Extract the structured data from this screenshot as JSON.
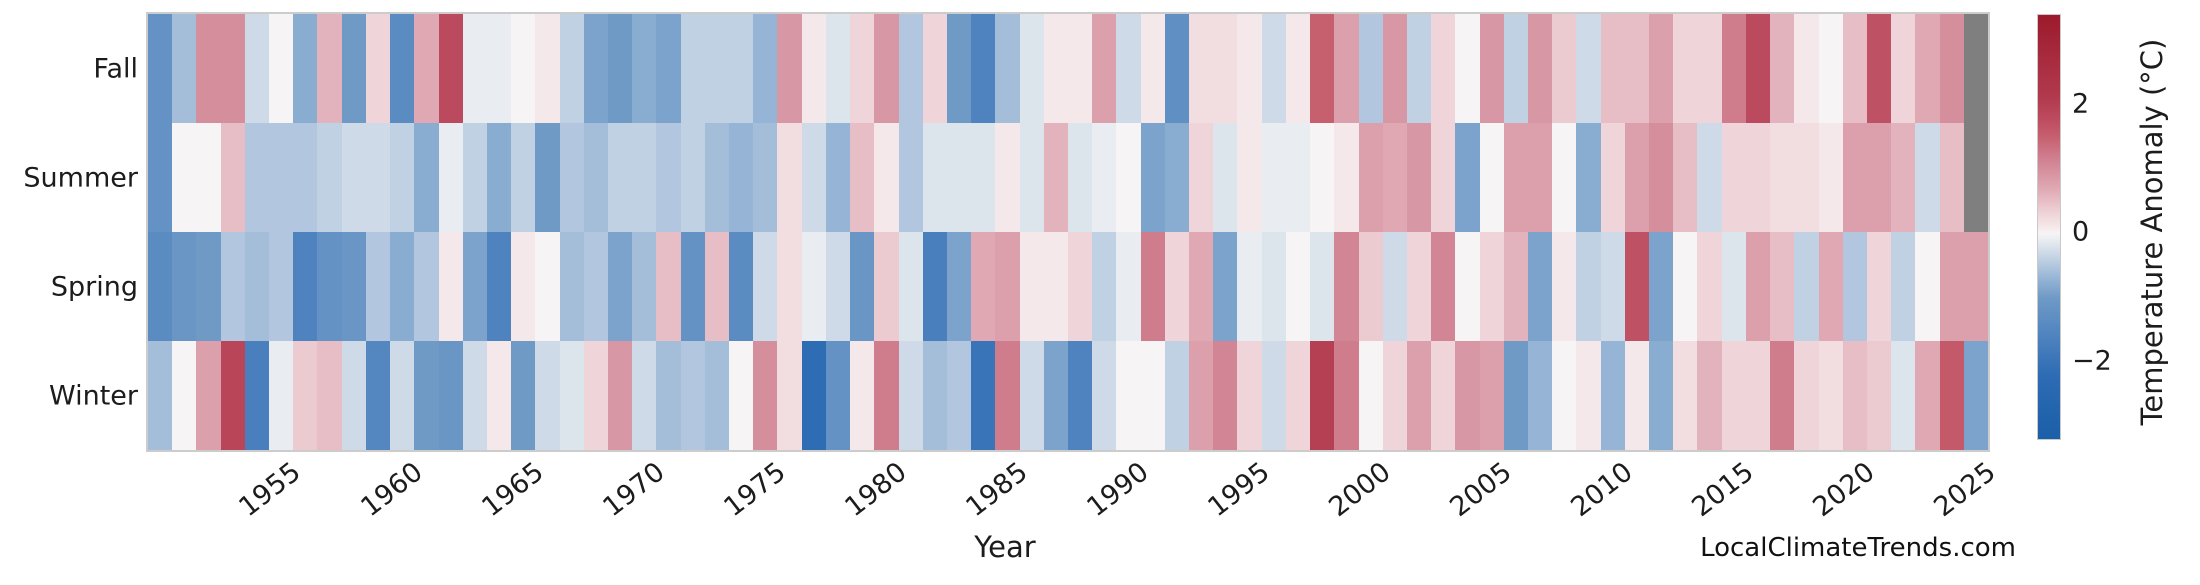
{
  "watermark": "LocalClimateTrends.com",
  "chart_data": {
    "type": "heatmap",
    "title": "",
    "xlabel": "Year",
    "ylabel": "",
    "colorbar_label": "Temperature Anomaly (°C)",
    "rows": [
      "Fall",
      "Summer",
      "Spring",
      "Winter"
    ],
    "x_start_year": 1950,
    "x_end_year": 2025,
    "x_tick_years": [
      1955,
      1960,
      1965,
      1970,
      1975,
      1980,
      1985,
      1990,
      1995,
      2000,
      2005,
      2010,
      2015,
      2020,
      2025
    ],
    "colorbar_ticks": [
      {
        "label": "2",
        "value": 2
      },
      {
        "label": "0",
        "value": 0
      },
      {
        "label": "−2",
        "value": -2
      }
    ],
    "vmin": -3.2,
    "vmax": 3.4,
    "nan_color": "#7f7f7f",
    "diverging_stops": [
      [
        -3.3,
        "#1a5fa8"
      ],
      [
        -2.2,
        "#2e6cb4"
      ],
      [
        -1.6,
        "#4f83bf"
      ],
      [
        -1.0,
        "#6f9ac6"
      ],
      [
        -0.7,
        "#96b5d6"
      ],
      [
        -0.45,
        "#b9cce1"
      ],
      [
        -0.25,
        "#d5dfe9"
      ],
      [
        -0.1,
        "#e9edf2"
      ],
      [
        0.0,
        "#f6f4f5"
      ],
      [
        0.12,
        "#f5e6e8"
      ],
      [
        0.3,
        "#efd5d9"
      ],
      [
        0.5,
        "#e7bec6"
      ],
      [
        0.7,
        "#dfa8b3"
      ],
      [
        0.9,
        "#d897a4"
      ],
      [
        1.2,
        "#cf7c8d"
      ],
      [
        1.5,
        "#c6606f"
      ],
      [
        1.8,
        "#bc4a5e"
      ],
      [
        2.1,
        "#b23a4e"
      ],
      [
        3.4,
        "#9c1a2c"
      ]
    ],
    "grid": false,
    "legend_position": "right-colorbar",
    "series": [
      {
        "name": "Fall",
        "values": [
          -1.2,
          -0.6,
          1.0,
          1.0,
          -0.3,
          0.0,
          -0.8,
          0.6,
          -1.0,
          0.3,
          -1.4,
          0.7,
          1.8,
          -0.1,
          -0.1,
          0.0,
          0.1,
          -0.4,
          -0.9,
          -1.0,
          -0.8,
          -0.9,
          -0.4,
          -0.4,
          -0.4,
          -0.7,
          0.9,
          0.1,
          -0.2,
          0.3,
          0.9,
          -0.5,
          0.3,
          -1.0,
          -1.6,
          -0.6,
          -0.2,
          0.1,
          0.1,
          0.8,
          -0.3,
          0.1,
          -1.3,
          0.2,
          0.2,
          0.1,
          -0.3,
          0.1,
          1.5,
          0.8,
          -0.5,
          0.9,
          -0.4,
          0.3,
          0.0,
          0.9,
          -0.4,
          0.9,
          0.4,
          -0.3,
          0.5,
          0.5,
          0.8,
          0.3,
          0.3,
          1.2,
          1.8,
          0.6,
          0.1,
          0.0,
          0.5,
          1.7,
          0.3,
          0.7,
          1.0,
          null
        ]
      },
      {
        "name": "Summer",
        "values": [
          -1.2,
          0.0,
          0.0,
          0.5,
          -0.5,
          -0.5,
          -0.5,
          -0.4,
          -0.3,
          -0.3,
          -0.4,
          -0.8,
          -0.1,
          -0.4,
          -0.8,
          -0.4,
          -1.0,
          -0.5,
          -0.6,
          -0.4,
          -0.4,
          -0.5,
          -0.4,
          -0.6,
          -0.7,
          -0.6,
          0.2,
          -0.3,
          -0.7,
          0.5,
          0.1,
          -0.5,
          -0.2,
          -0.2,
          -0.2,
          0.1,
          -0.2,
          0.6,
          -0.2,
          -0.1,
          0.0,
          -0.9,
          -0.8,
          0.3,
          -0.2,
          0.1,
          -0.1,
          -0.1,
          0.0,
          0.1,
          0.8,
          0.7,
          0.9,
          0.3,
          -0.9,
          0.0,
          0.8,
          0.8,
          0.0,
          -0.8,
          0.3,
          0.8,
          1.0,
          0.5,
          -0.3,
          0.3,
          0.3,
          0.2,
          0.2,
          0.1,
          0.8,
          0.8,
          0.6,
          -0.3,
          0.5,
          null
        ]
      },
      {
        "name": "Spring",
        "values": [
          -1.4,
          -1.1,
          -1.0,
          -0.5,
          -0.6,
          -0.5,
          -1.6,
          -1.2,
          -1.1,
          -0.5,
          -0.8,
          -0.5,
          0.1,
          -0.9,
          -1.6,
          0.1,
          0.0,
          -0.6,
          -0.5,
          -0.9,
          -0.6,
          0.5,
          -1.2,
          0.5,
          -1.4,
          -0.3,
          0.2,
          -0.1,
          -0.3,
          -1.1,
          0.4,
          -0.2,
          -1.7,
          -0.9,
          0.7,
          0.8,
          0.1,
          0.1,
          0.3,
          -0.4,
          -0.1,
          1.2,
          0.3,
          0.7,
          -0.9,
          -0.1,
          -0.2,
          0.0,
          -0.2,
          1.1,
          0.4,
          -0.3,
          0.3,
          1.1,
          0.0,
          0.3,
          0.6,
          -0.9,
          0.1,
          -0.4,
          -0.3,
          1.7,
          -0.9,
          0.0,
          0.3,
          -0.2,
          0.8,
          0.5,
          -0.4,
          0.7,
          -0.5,
          0.3,
          -0.4,
          0.0,
          0.8,
          0.8
        ]
      },
      {
        "name": "Winter",
        "values": [
          -0.6,
          0.0,
          0.8,
          1.9,
          -1.7,
          -0.1,
          0.4,
          0.5,
          -0.3,
          -1.5,
          -0.3,
          -1.0,
          -1.1,
          -0.3,
          0.1,
          -1.0,
          -0.3,
          -0.2,
          0.3,
          0.9,
          -0.3,
          -0.6,
          -0.5,
          -0.6,
          0.0,
          1.0,
          0.2,
          -2.2,
          -1.2,
          0.1,
          1.2,
          -0.3,
          -0.6,
          -0.5,
          -2.0,
          1.2,
          -0.3,
          -0.9,
          -1.6,
          -0.3,
          0.0,
          0.0,
          -0.4,
          0.8,
          1.1,
          0.3,
          -0.3,
          0.3,
          2.0,
          1.2,
          0.0,
          0.3,
          0.8,
          0.3,
          0.9,
          0.8,
          -1.0,
          -0.7,
          0.0,
          0.1,
          -0.7,
          0.1,
          -0.8,
          0.2,
          0.6,
          0.3,
          0.3,
          1.2,
          0.3,
          0.2,
          0.5,
          0.4,
          -0.2,
          0.7,
          1.6,
          -0.9
        ]
      }
    ]
  }
}
